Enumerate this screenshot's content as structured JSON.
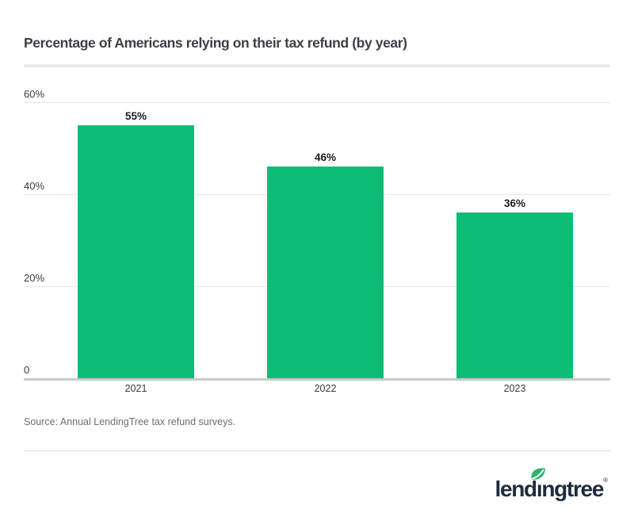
{
  "page_title": "Percentage of Americans relying on their tax refund (by year)",
  "chart_data": {
    "type": "bar",
    "title": "Percentage of Americans relying on their tax refund (by year)",
    "categories": [
      "2021",
      "2022",
      "2023"
    ],
    "values": [
      55,
      46,
      36
    ],
    "bar_labels": [
      "55%",
      "46%",
      "36%"
    ],
    "xlabel": "",
    "ylabel": "",
    "ylim": [
      0,
      60
    ],
    "yticks": [
      {
        "value": 60,
        "label": "60%"
      },
      {
        "value": 40,
        "label": "40%"
      },
      {
        "value": 20,
        "label": "20%"
      },
      {
        "value": 0,
        "label": "0"
      }
    ],
    "grid": true,
    "legend": false,
    "bar_color": "#0dbd76"
  },
  "source": {
    "text": "Source: Annual LendingTree tax refund surveys."
  },
  "footer": {
    "logo": {
      "brand": "lendingtree",
      "part_left": "lend",
      "part_i": "ı",
      "part_right": "ngtree",
      "registered": "®",
      "leaf_color": "#2db36e",
      "text_color": "#1e2c3c"
    }
  },
  "colors": {
    "bar_green": "#0dbd76",
    "grid_line": "#e7e7e7",
    "axis_line": "#c9c9c9",
    "title_text": "#3d4043",
    "tick_text": "#3a3a3a",
    "value_text": "#1d1d1d",
    "source_text": "#6e6e6e",
    "divider": "#e9e9e9",
    "logo_navy": "#1e2c3c",
    "leaf_green": "#2db36e"
  }
}
